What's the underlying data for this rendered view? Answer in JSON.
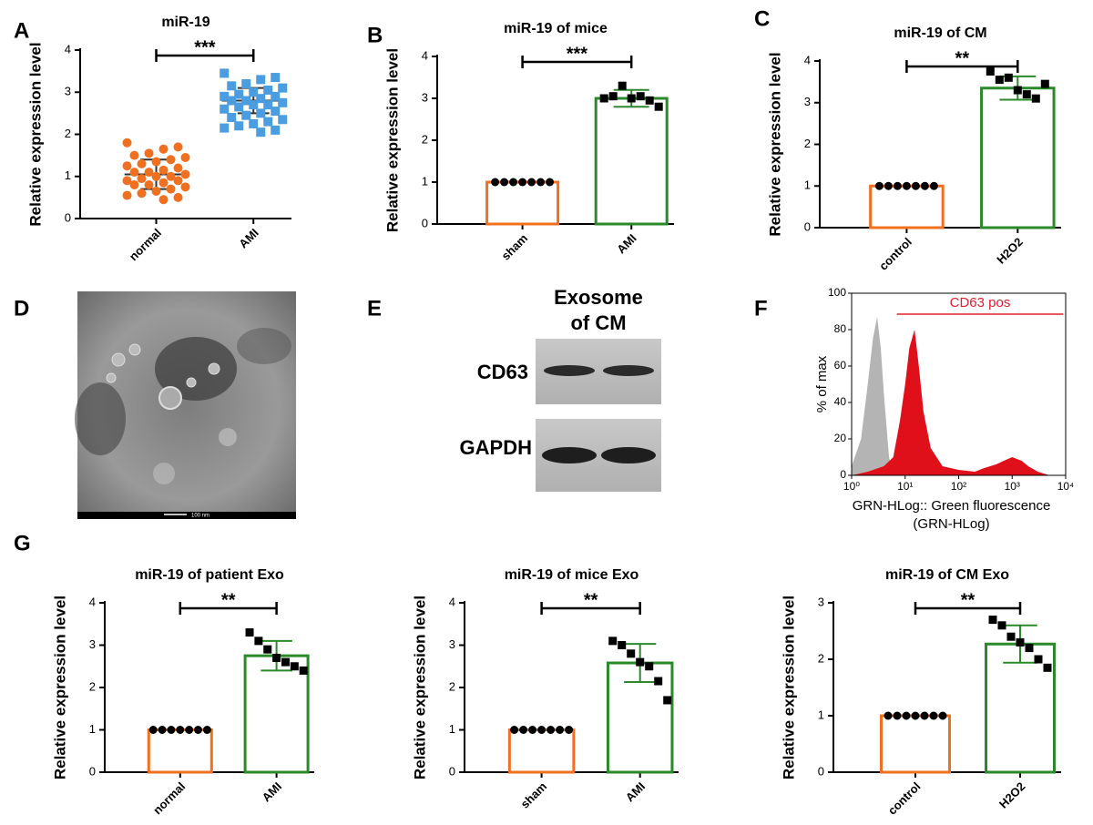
{
  "panel_labels": [
    "A",
    "B",
    "C",
    "D",
    "E",
    "F",
    "G"
  ],
  "image_d": {
    "scale_bar": "100 nm"
  },
  "blot_e": {
    "title_line1": "Exosome",
    "title_line2": "of CM",
    "rows": [
      "CD63",
      "GAPDH"
    ]
  },
  "chart_data": [
    {
      "type": "dot",
      "title": "miR-19",
      "ylabel": "Relative expression level",
      "categories": [
        "normal",
        "AMI"
      ],
      "values": [
        1.05,
        2.8
      ],
      "errors": [
        0.35,
        0.3
      ],
      "point_colors": [
        "#f07020",
        "#4a9de0"
      ],
      "markers": [
        "circle",
        "square"
      ],
      "points": [
        [
          1.8,
          1.7,
          1.65,
          1.55,
          1.5,
          1.45,
          1.4,
          1.35,
          1.3,
          1.25,
          1.2,
          1.15,
          1.1,
          1.1,
          1.05,
          1.0,
          1.0,
          0.95,
          0.9,
          0.9,
          0.85,
          0.8,
          0.8,
          0.75,
          0.7,
          0.65,
          0.6,
          0.55,
          0.5,
          0.45
        ],
        [
          3.45,
          3.35,
          3.3,
          3.2,
          3.15,
          3.1,
          3.05,
          3.0,
          2.95,
          2.9,
          2.9,
          2.85,
          2.8,
          2.8,
          2.75,
          2.7,
          2.7,
          2.65,
          2.6,
          2.55,
          2.5,
          2.45,
          2.4,
          2.35,
          2.3,
          2.25,
          2.2,
          2.15,
          2.1,
          2.05
        ]
      ],
      "significance": "***",
      "ylim": [
        0,
        4
      ],
      "yticks": [
        0,
        1,
        2,
        3,
        4
      ]
    },
    {
      "type": "bar",
      "title": "miR-19 of mice",
      "ylabel": "Relative expression level",
      "categories": [
        "sham",
        "AMI"
      ],
      "values": [
        1,
        3.0
      ],
      "errors": [
        0,
        0.2
      ],
      "colors": [
        "#f07020",
        "#2a8a2a"
      ],
      "point_colors": [
        "#000000",
        "#000000"
      ],
      "markers": [
        "circle",
        "square"
      ],
      "points": [
        [
          1,
          1,
          1,
          1,
          1,
          1,
          1
        ],
        [
          3.0,
          3.05,
          3.3,
          3.0,
          3.05,
          2.95,
          2.8
        ]
      ],
      "significance": "***",
      "ylim": [
        0,
        4
      ],
      "yticks": [
        0,
        1,
        2,
        3,
        4
      ]
    },
    {
      "type": "bar",
      "title": "miR-19 of CM",
      "ylabel": "Relative expression level",
      "categories": [
        "control",
        "H2O2"
      ],
      "values": [
        1,
        3.35
      ],
      "errors": [
        0,
        0.28
      ],
      "colors": [
        "#f07020",
        "#2a8a2a"
      ],
      "point_colors": [
        "#000000",
        "#000000"
      ],
      "markers": [
        "circle",
        "square"
      ],
      "points": [
        [
          1,
          1,
          1,
          1,
          1,
          1,
          1
        ],
        [
          3.75,
          3.55,
          3.6,
          3.3,
          3.2,
          3.1,
          3.45
        ]
      ],
      "significance": "**",
      "ylim": [
        0,
        4
      ],
      "yticks": [
        0,
        1,
        2,
        3,
        4
      ]
    },
    {
      "type": "flow",
      "ylabel": "% of max",
      "xlabel": "GRN-HLog:: Green fluorescence",
      "xlabel2": "(GRN-HLog)",
      "log_x": true,
      "xlim": [
        1,
        10000
      ],
      "xticks": [
        {
          "value": 1,
          "label": "10⁰"
        },
        {
          "value": 10,
          "label": "10¹"
        },
        {
          "value": 100,
          "label": "10²"
        },
        {
          "value": 1000,
          "label": "10³"
        },
        {
          "value": 10000,
          "label": "10⁴"
        }
      ],
      "ylim": [
        0,
        100
      ],
      "yticks": [
        0,
        20,
        40,
        60,
        80,
        100
      ],
      "gate": {
        "label": "CD63 pos",
        "range": [
          7,
          9000
        ],
        "color": "#e0202a"
      },
      "series": [
        {
          "color": "#b4b4b4",
          "x": [
            1,
            1.5,
            2,
            2.5,
            3,
            3.5,
            4,
            5,
            6
          ],
          "values": [
            5,
            20,
            50,
            75,
            87,
            70,
            45,
            10,
            0
          ]
        },
        {
          "color": "#e0101a",
          "x": [
            1,
            2,
            4,
            6,
            8,
            10,
            12,
            15,
            18,
            22,
            30,
            50,
            100,
            200,
            300,
            500,
            700,
            1000,
            1500,
            2000,
            3000,
            5000
          ],
          "values": [
            0,
            2,
            5,
            10,
            30,
            50,
            70,
            80,
            60,
            35,
            15,
            5,
            3,
            2,
            4,
            6,
            8,
            10,
            8,
            5,
            2,
            0
          ]
        }
      ]
    },
    {
      "type": "bar",
      "title": "miR-19 of patient Exo",
      "ylabel": "Relative expression level",
      "categories": [
        "normal",
        "AMI"
      ],
      "values": [
        1,
        2.75
      ],
      "errors": [
        0,
        0.35
      ],
      "colors": [
        "#f07020",
        "#2a8a2a"
      ],
      "point_colors": [
        "#000000",
        "#000000"
      ],
      "markers": [
        "circle",
        "square"
      ],
      "points": [
        [
          1,
          1,
          1,
          1,
          1,
          1,
          1
        ],
        [
          3.3,
          3.1,
          2.9,
          2.7,
          2.6,
          2.5,
          2.4
        ]
      ],
      "significance": "**",
      "ylim": [
        0,
        4
      ],
      "yticks": [
        0,
        1,
        2,
        3,
        4
      ]
    },
    {
      "type": "bar",
      "title": "miR-19 of mice Exo",
      "ylabel": "Relative expression level",
      "categories": [
        "sham",
        "AMI"
      ],
      "values": [
        1,
        2.58
      ],
      "errors": [
        0,
        0.45
      ],
      "colors": [
        "#f07020",
        "#2a8a2a"
      ],
      "point_colors": [
        "#000000",
        "#000000"
      ],
      "markers": [
        "circle",
        "square"
      ],
      "points": [
        [
          1,
          1,
          1,
          1,
          1,
          1,
          1
        ],
        [
          3.1,
          3.0,
          2.8,
          2.6,
          2.5,
          2.15,
          1.7
        ]
      ],
      "significance": "**",
      "ylim": [
        0,
        4
      ],
      "yticks": [
        0,
        1,
        2,
        3,
        4
      ]
    },
    {
      "type": "bar",
      "title": "miR-19 of CM Exo",
      "ylabel": "Relative expression level",
      "categories": [
        "control",
        "H2O2"
      ],
      "values": [
        1,
        2.27
      ],
      "errors": [
        0,
        0.33
      ],
      "colors": [
        "#f07020",
        "#2a8a2a"
      ],
      "point_colors": [
        "#000000",
        "#000000"
      ],
      "markers": [
        "circle",
        "square"
      ],
      "points": [
        [
          1,
          1,
          1,
          1,
          1,
          1,
          1
        ],
        [
          2.7,
          2.6,
          2.4,
          2.3,
          2.2,
          2.0,
          1.85
        ]
      ],
      "significance": "**",
      "ylim": [
        0,
        3
      ],
      "yticks": [
        0,
        1,
        2,
        3
      ]
    }
  ]
}
